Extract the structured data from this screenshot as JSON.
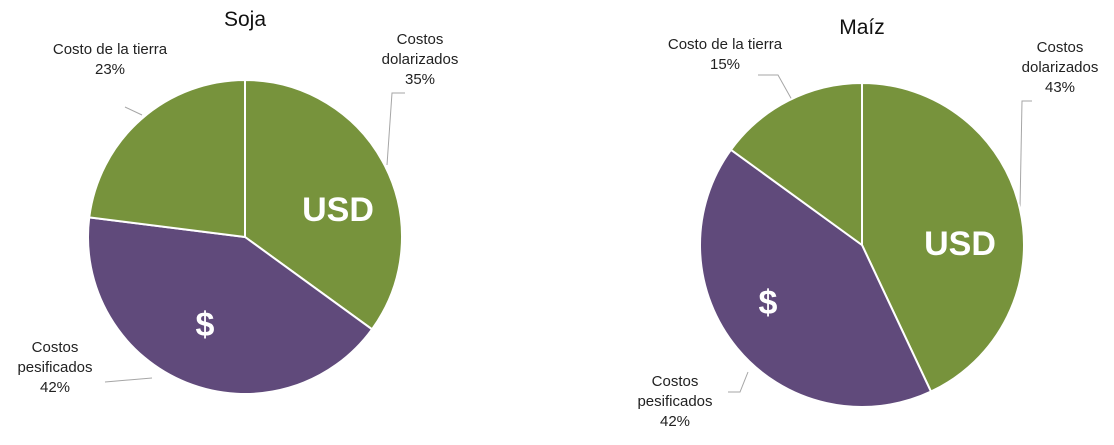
{
  "chart_data": [
    {
      "type": "pie",
      "title": "Soja",
      "categories": [
        "Costos dolarizados",
        "Costos pesificados",
        "Costo de la tierra"
      ],
      "values": [
        35,
        42,
        23
      ],
      "value_labels": [
        "35%",
        "42%",
        "23%"
      ],
      "colors": [
        "#77933c",
        "#604a7b",
        "#77933c"
      ],
      "inner_labels": [
        "USD",
        "$"
      ]
    },
    {
      "type": "pie",
      "title": "Maíz",
      "categories": [
        "Costos dolarizados",
        "Costos pesificados",
        "Costo de la tierra"
      ],
      "values": [
        43,
        42,
        15
      ],
      "value_labels": [
        "43%",
        "42%",
        "15%"
      ],
      "colors": [
        "#77933c",
        "#604a7b",
        "#77933c"
      ],
      "inner_labels": [
        "USD",
        "$"
      ]
    }
  ]
}
